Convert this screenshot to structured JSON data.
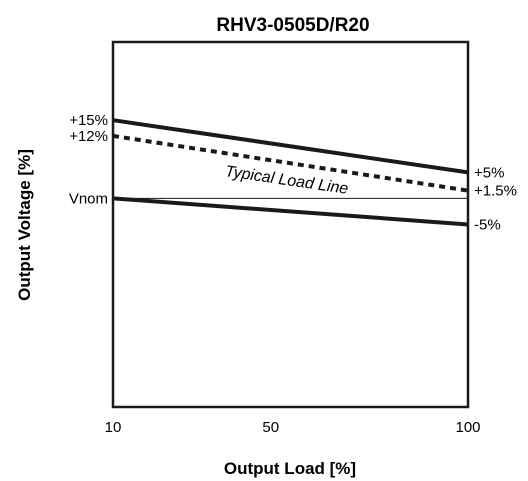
{
  "chart_data": {
    "type": "line",
    "title": "RHV3-0505D/R20",
    "xlabel": "Output Load [%]",
    "ylabel": "Output Voltage [%]",
    "xlim": [
      10,
      100
    ],
    "ylim": [
      -40,
      30
    ],
    "x_ticks": [
      {
        "value": 10,
        "label": "10"
      },
      {
        "value": 50,
        "label": "50"
      },
      {
        "value": 100,
        "label": "100"
      }
    ],
    "y_ticks": [
      {
        "value": 15,
        "label": "+15%"
      },
      {
        "value": 12,
        "label": "+12%"
      },
      {
        "value": 0,
        "label": "Vnom"
      }
    ],
    "right_labels": [
      {
        "value": 5,
        "label": "+5%"
      },
      {
        "value": 1.5,
        "label": "+1.5%"
      },
      {
        "value": -5,
        "label": "-5%"
      }
    ],
    "series": [
      {
        "key": "upper",
        "style": "solid-thick",
        "x": [
          10,
          100
        ],
        "y": [
          15,
          5
        ]
      },
      {
        "key": "typical",
        "name": "Typical Load Line",
        "style": "dashed-thick",
        "x": [
          10,
          100
        ],
        "y": [
          12,
          1.5
        ]
      },
      {
        "key": "nominal",
        "style": "solid-thin",
        "x": [
          10,
          100
        ],
        "y": [
          0,
          0
        ]
      },
      {
        "key": "lower",
        "style": "solid-thick",
        "x": [
          10,
          100
        ],
        "y": [
          0,
          -5
        ]
      }
    ],
    "grid": false,
    "legend": "none",
    "colors": {
      "line": "#1a1a1a",
      "background": "#ffffff"
    }
  }
}
